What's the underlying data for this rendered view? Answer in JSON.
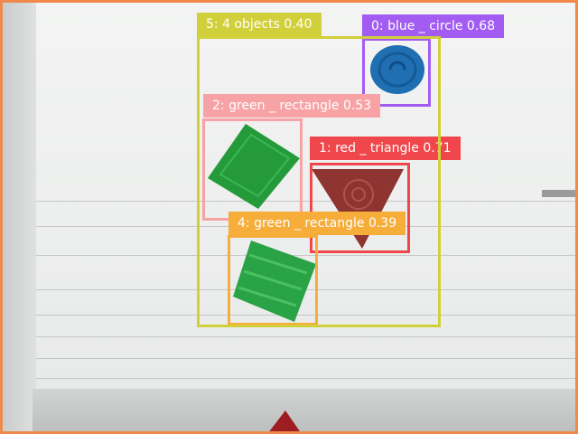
{
  "image": {
    "frame_color": "#ef8a4c",
    "background": "whiteboard with grey slats and a plastic tray"
  },
  "objects": [
    {
      "name": "blue-circle",
      "color": "#1f6fb2"
    },
    {
      "name": "green-rectangle-upper",
      "color": "#249a3a"
    },
    {
      "name": "red-triangle",
      "color": "#8e3531"
    },
    {
      "name": "green-rectangle-lower",
      "color": "#2aa346"
    }
  ],
  "detections": [
    {
      "label": "0: blue _ circle 0.68",
      "color": "#a25cf2",
      "text_color": "#ffffff"
    },
    {
      "label": "1: red _ triangle 0.71",
      "color": "#f0474c",
      "text_color": "#ffffff"
    },
    {
      "label": "2: green _ rectangle 0.53",
      "color": "#f7a3a5",
      "text_color": "#ffffff"
    },
    {
      "label": "4: green _ rectangle 0.39",
      "color": "#f6ad3a",
      "text_color": "#ffffff"
    },
    {
      "label": "5: 4 objects 0.40",
      "color": "#d1cf3a",
      "text_color": "#ffffff"
    }
  ]
}
